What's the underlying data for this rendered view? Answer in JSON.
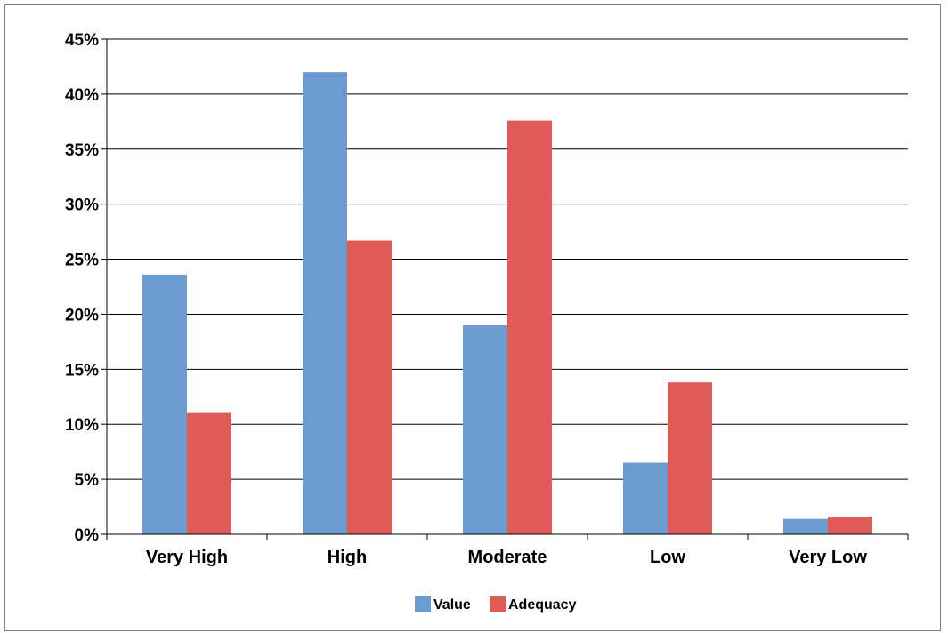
{
  "chart_data": {
    "type": "bar",
    "categories": [
      "Very High",
      "High",
      "Moderate",
      "Low",
      "Very Low"
    ],
    "series": [
      {
        "name": "Value",
        "color": "#6b9bd1",
        "values": [
          23.6,
          42.0,
          19.0,
          6.5,
          1.4
        ]
      },
      {
        "name": "Adequacy",
        "color": "#e05a58",
        "values": [
          11.1,
          26.7,
          37.6,
          13.8,
          1.6
        ]
      }
    ],
    "yticks": [
      "0%",
      "5%",
      "10%",
      "15%",
      "20%",
      "25%",
      "30%",
      "35%",
      "40%",
      "45%"
    ],
    "ylim": [
      0,
      45
    ],
    "grid": true,
    "legend_position": "bottom"
  }
}
